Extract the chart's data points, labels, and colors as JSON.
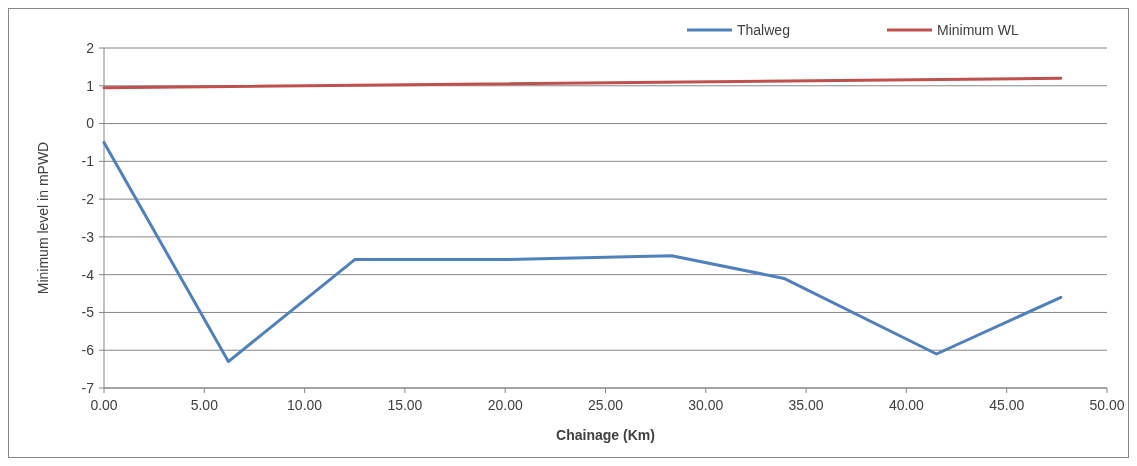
{
  "chart_data": {
    "type": "line",
    "xlabel": "Chainage (Km)",
    "ylabel": "Minimum level in mPWD",
    "xlim": [
      0,
      50
    ],
    "xticks": [
      {
        "value": 0,
        "label": "0.00"
      },
      {
        "value": 5,
        "label": "5.00"
      },
      {
        "value": 10,
        "label": "10.00"
      },
      {
        "value": 15,
        "label": "15.00"
      },
      {
        "value": 20,
        "label": "20.00"
      },
      {
        "value": 25,
        "label": "25.00"
      },
      {
        "value": 30,
        "label": "30.00"
      },
      {
        "value": 35,
        "label": "35.00"
      },
      {
        "value": 40,
        "label": "40.00"
      },
      {
        "value": 45,
        "label": "45.00"
      },
      {
        "value": 50,
        "label": "50.00"
      }
    ],
    "ylim": [
      -7,
      2
    ],
    "yticks": [
      -7,
      -6,
      -5,
      -4,
      -3,
      -2,
      -1,
      0,
      1,
      2
    ],
    "grid": "y",
    "legend": "top right",
    "marker": "none",
    "line_style": "solid",
    "series": [
      {
        "name": "Thalweg",
        "color": "#4f81bd",
        "x": [
          0,
          6.2,
          12.5,
          20,
          28.3,
          33.9,
          41.5,
          47.7
        ],
        "values": [
          -0.5,
          -6.3,
          -3.6,
          -3.6,
          -3.5,
          -4.1,
          -6.1,
          -4.6
        ]
      },
      {
        "name": "Minimum WL",
        "color": "#c0504d",
        "x": [
          0,
          47.7
        ],
        "values": [
          0.95,
          1.2
        ]
      }
    ]
  }
}
